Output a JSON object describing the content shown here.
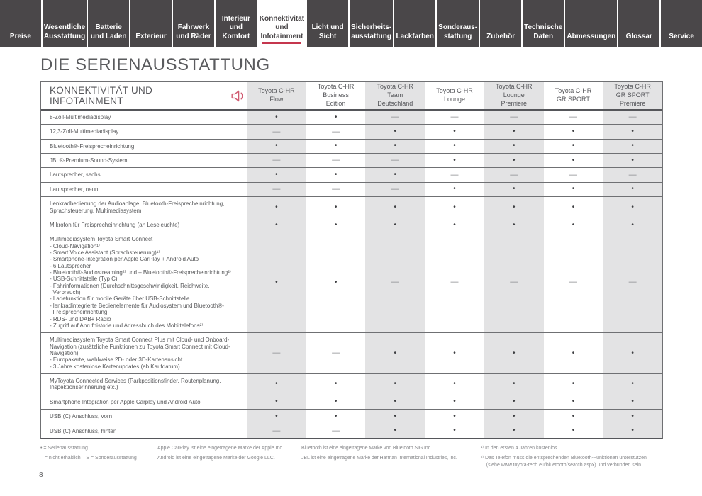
{
  "nav": {
    "tabs": [
      {
        "label": "Preise",
        "active": false
      },
      {
        "label": "Wesentliche\nAusstattung",
        "active": false
      },
      {
        "label": "Batterie\nund Laden",
        "active": false
      },
      {
        "label": "Exterieur",
        "active": false
      },
      {
        "label": "Fahrwerk\nund Räder",
        "active": false
      },
      {
        "label": "Interieur und\nKomfort",
        "active": false
      },
      {
        "label": "Konnektivität\nund\nInfotainment",
        "active": true
      },
      {
        "label": "Licht und Sicht",
        "active": false
      },
      {
        "label": "Sicherheits-\nausstattung",
        "active": false
      },
      {
        "label": "Lackfarben",
        "active": false
      },
      {
        "label": "Sonderaus-\nstattung",
        "active": false
      },
      {
        "label": "Zubehör",
        "active": false
      },
      {
        "label": "Technische\nDaten",
        "active": false
      },
      {
        "label": "Abmessungen",
        "active": false
      },
      {
        "label": "Glossar",
        "active": false
      },
      {
        "label": "Service",
        "active": false
      }
    ]
  },
  "page": {
    "title": "DIE SERIENAUSSTATTUNG",
    "page_number": "8"
  },
  "table": {
    "section_title": "KONNEKTIVITÄT UND INFOTAINMENT",
    "section_icon": "speaker-icon",
    "accent_color": "#c5364e",
    "shade_color": "#e3e3e4",
    "columns": [
      "Toyota C-HR\nFlow",
      "Toyota C-HR\nBusiness\nEdition",
      "Toyota C-HR\nTeam\nDeutschland",
      "Toyota C-HR\nLounge",
      "Toyota C-HR\nLounge\nPremiere",
      "Toyota C-HR\nGR SPORT",
      "Toyota C-HR\nGR SPORT\nPremiere"
    ],
    "rows": [
      {
        "feature": "8-Zoll-Multimediadisplay",
        "values": [
          "•",
          "•",
          "—",
          "—",
          "—",
          "—",
          "—"
        ]
      },
      {
        "feature": "12,3-Zoll-Multimediadisplay",
        "values": [
          "—",
          "—",
          "•",
          "•",
          "•",
          "•",
          "•"
        ]
      },
      {
        "feature": "Bluetooth®-Freisprecheinrichtung",
        "values": [
          "•",
          "•",
          "•",
          "•",
          "•",
          "•",
          "•"
        ]
      },
      {
        "feature": "JBL®-Premium-Sound-System",
        "values": [
          "—",
          "—",
          "—",
          "•",
          "•",
          "•",
          "•"
        ]
      },
      {
        "feature": "Lautsprecher, sechs",
        "values": [
          "•",
          "•",
          "•",
          "—",
          "—",
          "—",
          "—"
        ]
      },
      {
        "feature": "Lautsprecher, neun",
        "values": [
          "—",
          "—",
          "—",
          "•",
          "•",
          "•",
          "•"
        ]
      },
      {
        "feature": "Lenkradbedienung der Audioanlage, Bluetooth-Freisprecheinrichtung,\nSprachsteuerung, Multimediasystem",
        "values": [
          "•",
          "•",
          "•",
          "•",
          "•",
          "•",
          "•"
        ]
      },
      {
        "feature": "Mikrofon für Freisprecheinrichtung (an Leseleuchte)",
        "values": [
          "•",
          "•",
          "•",
          "•",
          "•",
          "•",
          "•"
        ]
      },
      {
        "feature": "Multimediasystem Toyota Smart Connect\n- Cloud-Navigation¹⁾\n- Smart Voice Assistant (Sprachsteuerung)¹⁾\n- Smartphone-Integration per Apple CarPlay + Android Auto\n- 6 Lautsprecher\n- Bluetooth®-Audiostreaming²⁾ und – Bluetooth®-Freisprecheinrichtung²⁾\n- USB-Schnittstelle (Typ C)\n- Fahrinformationen (Durchschnittsgeschwindigkeit, Reichweite,\n  Verbrauch)\n- Ladefunktion für mobile Geräte über USB-Schnittstelle\n- lenkradintegrierte Bedienelemente für Audiosystem und Bluetooth®-\n  Freisprecheinrichtung\n- RDS- und DAB+ Radio\n- Zugriff auf Anrufhistorie und Adressbuch des Mobiltelefons²⁾",
        "values": [
          "•",
          "•",
          "—",
          "—",
          "—",
          "—",
          "—"
        ]
      },
      {
        "feature": "Multimediasystem Toyota Smart Connect Plus mit Cloud- und Onboard-\nNavigation (zusätzliche Funktionen zu Toyota Smart Connect mit Cloud-\nNavigation):\n- Europakarte, wahlweise 2D- oder 3D-Kartenansicht\n- 3 Jahre kostenlose Kartenupdates (ab Kaufdatum)",
        "values": [
          "—",
          "—",
          "•",
          "•",
          "•",
          "•",
          "•"
        ]
      },
      {
        "feature": "MyToyota Connected Services (Parkpositionsfinder, Routenplanung,\nInspektionserinnerung etc.)",
        "values": [
          "•",
          "•",
          "•",
          "•",
          "•",
          "•",
          "•"
        ]
      },
      {
        "feature": "Smartphone Integration per Apple Carplay und Android Auto",
        "values": [
          "•",
          "•",
          "•",
          "•",
          "•",
          "•",
          "•"
        ]
      },
      {
        "feature": "USB (C) Anschluss, vorn",
        "values": [
          "•",
          "•",
          "•",
          "•",
          "•",
          "•",
          "•"
        ]
      },
      {
        "feature": "USB (C) Anschluss, hinten",
        "values": [
          "—",
          "—",
          "•",
          "•",
          "•",
          "•",
          "•"
        ]
      }
    ]
  },
  "footnotes": {
    "columns": [
      {
        "lines": [
          "• = Serienausstattung",
          "– = nicht erhältlich    S = Sonderausstattung"
        ]
      },
      {
        "lines": [
          "Apple CarPlay ist eine eingetragene Marke der Apple Inc.",
          "Android ist eine eingetragene Marke der Google LLC."
        ]
      },
      {
        "lines": [
          "Bluetooth ist eine eingetragene Marke von Bluetooth SIG Inc.",
          "JBL ist eine eingetragene Marke der Harman International Industries, Inc."
        ]
      },
      {
        "lines": [
          "¹⁾ In den ersten 4 Jahren kostenlos.",
          "²⁾ Das Telefon muss die entsprechenden Bluetooth-Funktionen unterstützen\n    (siehe www.toyota-tech.eu/bluetooth/search.aspx) und verbunden sein."
        ]
      }
    ]
  }
}
